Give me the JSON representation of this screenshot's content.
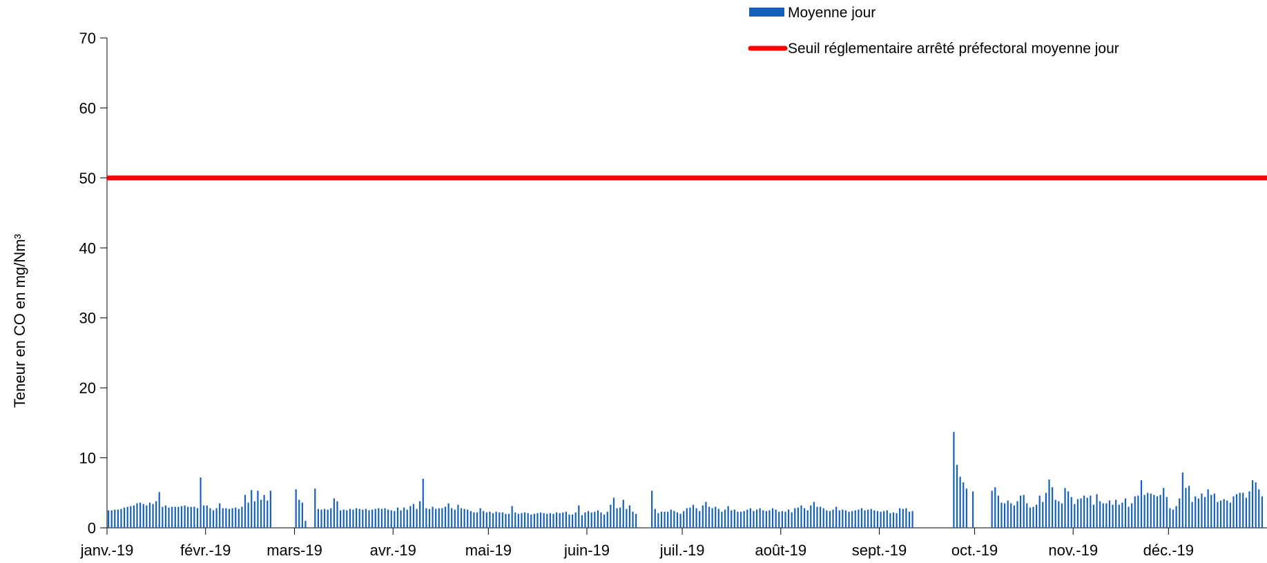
{
  "chart_data": {
    "type": "bar",
    "ylabel": "Teneur en CO en mg/Nm³",
    "ylim": [
      0,
      70
    ],
    "yticks": [
      0,
      10,
      20,
      30,
      40,
      50,
      60,
      70
    ],
    "x_start_date": "2019-01-01",
    "month_ticks": [
      {
        "label": "janv.-19",
        "date": "2019-01-01"
      },
      {
        "label": "févr.-19",
        "date": "2019-02-01"
      },
      {
        "label": "mars-19",
        "date": "2019-03-01"
      },
      {
        "label": "avr.-19",
        "date": "2019-04-01"
      },
      {
        "label": "mai-19",
        "date": "2019-05-01"
      },
      {
        "label": "juin-19",
        "date": "2019-06-01"
      },
      {
        "label": "juil.-19",
        "date": "2019-07-01"
      },
      {
        "label": "août-19",
        "date": "2019-08-01"
      },
      {
        "label": "sept.-19",
        "date": "2019-09-01"
      },
      {
        "label": "oct.-19",
        "date": "2019-10-01"
      },
      {
        "label": "nov.-19",
        "date": "2019-11-01"
      },
      {
        "label": "déc.-19",
        "date": "2019-12-01"
      }
    ],
    "grid": false,
    "legend_position": "top-right",
    "series": [
      {
        "name": "Moyenne jour",
        "type": "bar",
        "color": "#1560BD",
        "segments": [
          {
            "start": "2019-01-01",
            "values": [
              2.5,
              2.5,
              2.6,
              2.6,
              2.7,
              2.9,
              3.0,
              3.1,
              3.2,
              3.5,
              3.6,
              3.4,
              3.2,
              3.6,
              3.4,
              3.8,
              5.1,
              3.0,
              3.2,
              2.9,
              3.0,
              3.0,
              3.0,
              3.1,
              3.2,
              3.0,
              3.0,
              3.0,
              2.8,
              7.2,
              3.2,
              3.2,
              2.8,
              2.5,
              2.8,
              3.5,
              2.8,
              2.8,
              2.7,
              2.8,
              2.9,
              2.7,
              3.0,
              4.7,
              3.6,
              5.4,
              3.8,
              5.3,
              4.0,
              4.7,
              3.9,
              5.3
            ]
          },
          {
            "start": "2019-03-01",
            "values": [
              5.5,
              4.0,
              3.6,
              1.0
            ]
          },
          {
            "start": "2019-03-07",
            "values": [
              5.6,
              2.7,
              2.6,
              2.7,
              2.6,
              2.8,
              4.2,
              3.8,
              2.5,
              2.6,
              2.5,
              2.7,
              2.6,
              2.8,
              2.7,
              2.6,
              2.7,
              2.5,
              2.6,
              2.7,
              2.8,
              2.7,
              2.8,
              2.6,
              2.5,
              2.4,
              2.9,
              2.5,
              2.9,
              2.6,
              3.1,
              3.4,
              2.7,
              3.8,
              7.0,
              2.8,
              2.7,
              3.0,
              2.7,
              2.8,
              2.8,
              3.0,
              3.5,
              2.8,
              2.6,
              3.3,
              2.8,
              2.7,
              2.6,
              2.4,
              2.2,
              2.2,
              2.8,
              2.4,
              2.2,
              2.3,
              2.1,
              2.3,
              2.2,
              2.2,
              2.0,
              2.0,
              3.1,
              2.2,
              2.0,
              2.1,
              2.2,
              2.1,
              1.9,
              2.0,
              2.1,
              2.2,
              2.1,
              2.0,
              2.1,
              2.0,
              2.2,
              2.1,
              2.2,
              2.3,
              1.9,
              1.9,
              2.2,
              3.2,
              1.8,
              2.2,
              2.4,
              2.2,
              2.3,
              2.5,
              2.2,
              1.9,
              2.3,
              3.3,
              4.3,
              2.8,
              2.9,
              4.0,
              2.7,
              3.2,
              2.3,
              2.0
            ]
          },
          {
            "start": "2019-06-21",
            "values": [
              5.3,
              2.7,
              2.1,
              2.3,
              2.3,
              2.3,
              2.6,
              2.4,
              2.2,
              2.0,
              2.4,
              2.8,
              2.9,
              3.3,
              2.8,
              2.4,
              3.2,
              3.7,
              3.0,
              2.8,
              3.0,
              2.7,
              2.3,
              2.6,
              3.1,
              2.5,
              2.6,
              2.3,
              2.3,
              2.4,
              2.6,
              2.8,
              2.4,
              2.6,
              2.8,
              2.5,
              2.4,
              2.5,
              2.8,
              2.6,
              2.3,
              2.4,
              2.3,
              2.6,
              2.2,
              2.8,
              2.9,
              3.2,
              2.8,
              2.5,
              3.2,
              3.7,
              3.0,
              3.0,
              2.8,
              2.5,
              2.4,
              2.6,
              3.0,
              2.5,
              2.6,
              2.5,
              2.3,
              2.4,
              2.5,
              2.6,
              2.8,
              2.5,
              2.6,
              2.7,
              2.5,
              2.4,
              2.3,
              2.4,
              2.5,
              2.1,
              2.2,
              2.1,
              2.8,
              2.7,
              2.8,
              2.3,
              2.4
            ]
          },
          {
            "start": "2019-09-24",
            "values": [
              13.7,
              9.0,
              7.3,
              6.5,
              5.6
            ]
          },
          {
            "start": "2019-09-30",
            "values": [
              5.2
            ]
          },
          {
            "start": "2019-10-06",
            "values": [
              5.3,
              5.8,
              4.6,
              3.6,
              3.5,
              3.9,
              3.5,
              3.2,
              3.8,
              4.6,
              4.7,
              3.5,
              2.9,
              3.0,
              3.3,
              4.6,
              3.7,
              5.0,
              6.9,
              5.8,
              4.0,
              3.8,
              3.5,
              5.7,
              5.2,
              4.4,
              3.4,
              4.1,
              4.2,
              4.6,
              4.3,
              4.6,
              3.3,
              4.8,
              3.8,
              3.5,
              3.5,
              3.9,
              3.3,
              4.0,
              3.3,
              3.6,
              4.2,
              3.0,
              3.5,
              4.5,
              4.6,
              6.8,
              4.7,
              5.0,
              4.9,
              4.7,
              4.5,
              4.7,
              5.7,
              4.4,
              2.8,
              2.6,
              3.1,
              4.2,
              7.9,
              5.7,
              6.0,
              3.7,
              4.5,
              4.2,
              4.9,
              4.4,
              5.5,
              4.7,
              4.9,
              3.7,
              3.9,
              4.1,
              3.9,
              3.6,
              4.5,
              4.8,
              5.0,
              5.0,
              4.3,
              5.2,
              6.8,
              6.5,
              5.5,
              4.5
            ]
          }
        ]
      },
      {
        "name": "Seuil réglementaire arrêté préfectoral moyenne jour",
        "type": "line",
        "color": "#FF0000",
        "value": 50
      }
    ]
  }
}
